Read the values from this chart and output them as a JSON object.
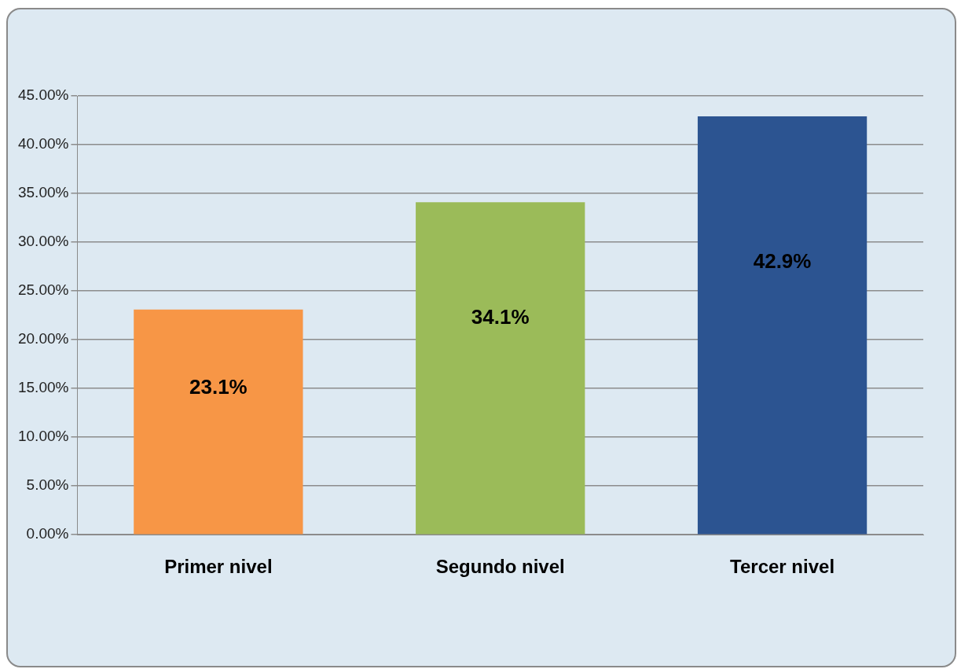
{
  "chart_data": {
    "type": "bar",
    "categories": [
      "Primer nivel",
      "Segundo nivel",
      "Tercer nivel"
    ],
    "values": [
      23.1,
      34.1,
      42.9
    ],
    "colors": [
      "#f79646",
      "#9bbb59",
      "#2c5491"
    ],
    "value_labels": [
      "23.1%",
      "34.1%",
      "42.9%"
    ],
    "ylim": [
      0,
      45
    ],
    "yticks": [
      {
        "value": 0,
        "label": "0.00%"
      },
      {
        "value": 5,
        "label": "5.00%"
      },
      {
        "value": 10,
        "label": "10.00%"
      },
      {
        "value": 15,
        "label": "15.00%"
      },
      {
        "value": 20,
        "label": "20.00%"
      },
      {
        "value": 25,
        "label": "25.00%"
      },
      {
        "value": 30,
        "label": "30.00%"
      },
      {
        "value": 35,
        "label": "35.00%"
      },
      {
        "value": 40,
        "label": "40.00%"
      },
      {
        "value": 45,
        "label": "45.00%"
      }
    ],
    "grid": "y"
  }
}
